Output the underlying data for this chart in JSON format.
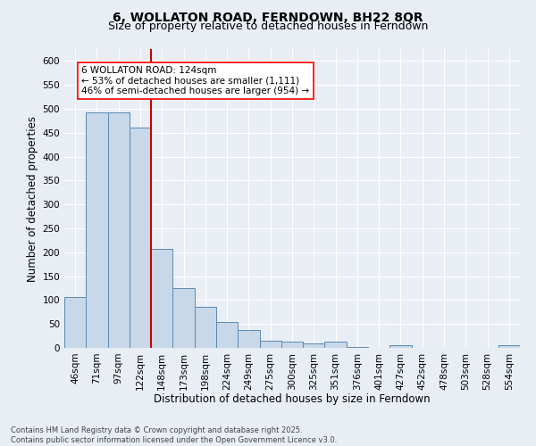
{
  "title": "6, WOLLATON ROAD, FERNDOWN, BH22 8QR",
  "subtitle": "Size of property relative to detached houses in Ferndown",
  "xlabel": "Distribution of detached houses by size in Ferndown",
  "ylabel": "Number of detached properties",
  "bar_color": "#c8d8e8",
  "bar_edge_color": "#5a8ab5",
  "bg_color": "#e8eef4",
  "categories": [
    "46sqm",
    "71sqm",
    "97sqm",
    "122sqm",
    "148sqm",
    "173sqm",
    "198sqm",
    "224sqm",
    "249sqm",
    "275sqm",
    "300sqm",
    "325sqm",
    "351sqm",
    "376sqm",
    "401sqm",
    "427sqm",
    "452sqm",
    "478sqm",
    "503sqm",
    "528sqm",
    "554sqm"
  ],
  "values": [
    107,
    492,
    492,
    460,
    207,
    125,
    86,
    55,
    38,
    15,
    13,
    10,
    13,
    2,
    0,
    6,
    0,
    0,
    0,
    0,
    6
  ],
  "vline_x": 3.5,
  "vline_color": "#cc0000",
  "annotation_text": "6 WOLLATON ROAD: 124sqm\n← 53% of detached houses are smaller (1,111)\n46% of semi-detached houses are larger (954) →",
  "ylim": [
    0,
    625
  ],
  "yticks": [
    0,
    50,
    100,
    150,
    200,
    250,
    300,
    350,
    400,
    450,
    500,
    550,
    600
  ],
  "footnote": "Contains HM Land Registry data © Crown copyright and database right 2025.\nContains public sector information licensed under the Open Government Licence v3.0.",
  "grid_color": "#ffffff",
  "title_fontsize": 10,
  "subtitle_fontsize": 9,
  "axis_label_fontsize": 8.5,
  "tick_fontsize": 7.5,
  "annot_fontsize": 7.5,
  "footnote_fontsize": 6
}
